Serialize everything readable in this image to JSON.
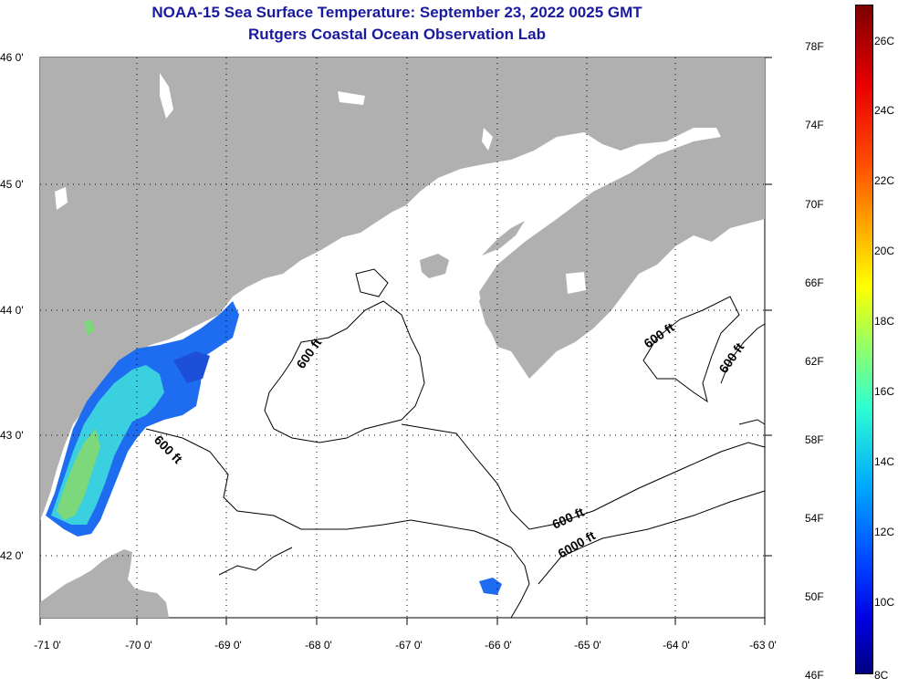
{
  "title": "NOAA-15 Sea Surface Temperature:  September 23, 2022 0025 GMT",
  "subtitle": "Rutgers Coastal Ocean Observation Lab",
  "lat_labels": [
    "46 0'",
    "45 0'",
    "44 0'",
    "43 0'",
    "42 0'"
  ],
  "lon_labels": [
    "-71 0'",
    "-70 0'",
    "-69 0'",
    "-68 0'",
    "-67 0'",
    "-66 0'",
    "-65 0'",
    "-64 0'",
    "-63 0'"
  ],
  "contour_labels": [
    "600 ft",
    "600 ft",
    "600 ft",
    "600 ft",
    "6000 ft",
    "600 ft"
  ],
  "colorbar": {
    "fahrenheit": [
      "78F",
      "74F",
      "70F",
      "66F",
      "62F",
      "58F",
      "54F",
      "50F",
      "46F"
    ],
    "celsius": [
      "26C",
      "24C",
      "22C",
      "20C",
      "18C",
      "16C",
      "14C",
      "12C",
      "10C",
      "8C"
    ]
  },
  "colors": {
    "land": "#b0b0b0",
    "title": "#1a1aa0",
    "sst_blue": "#1e6cf0",
    "sst_cyan": "#3ad0e0",
    "sst_green": "#7cd87a"
  }
}
